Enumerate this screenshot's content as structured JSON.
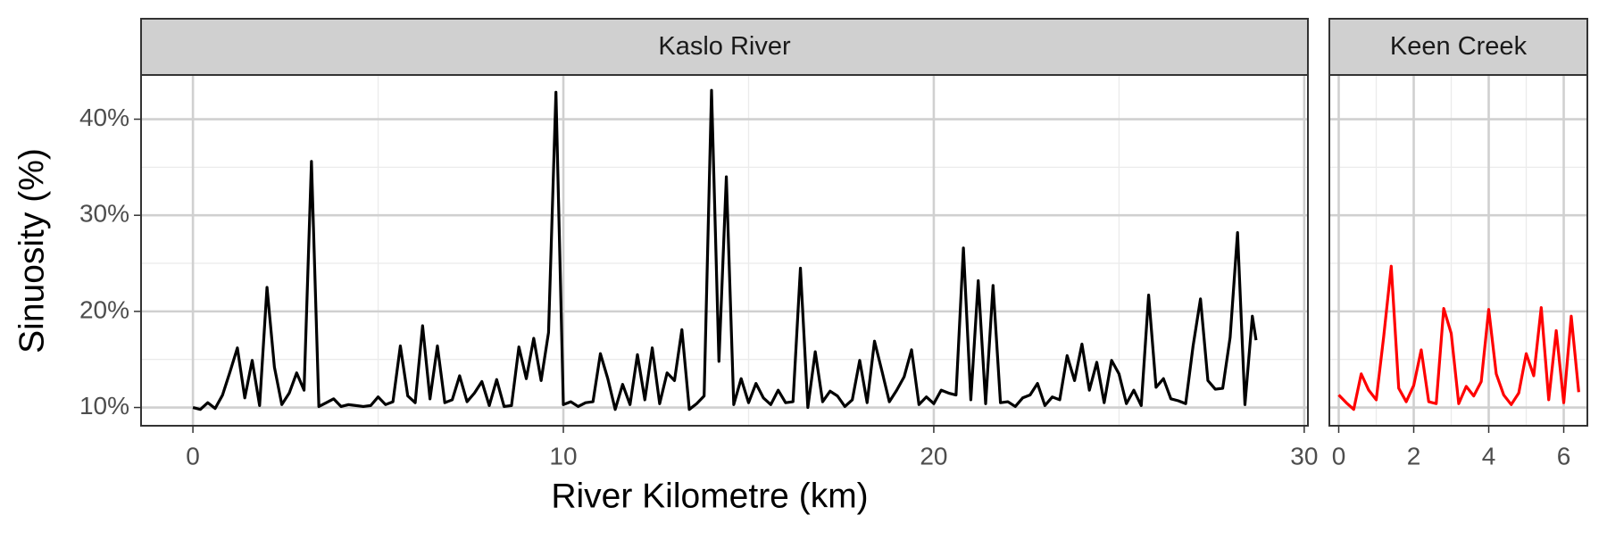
{
  "chart_data": {
    "type": "line",
    "x_label": "River Kilometre (km)",
    "y_label": "Sinuosity (%)",
    "ylim": [
      8.1,
      44.6
    ],
    "yticks": [
      {
        "value": 10,
        "label": "10%"
      },
      {
        "value": 20,
        "label": "20%"
      },
      {
        "value": 30,
        "label": "30%"
      },
      {
        "value": 40,
        "label": "40%"
      }
    ],
    "minor_yticks": [
      15,
      25,
      35
    ],
    "grid": true,
    "panels": [
      {
        "title": "Kaslo River",
        "color": "#000000",
        "xlim": [
          -1.4,
          30.1
        ],
        "xticks": [
          0,
          10,
          20,
          30
        ],
        "minor_xticks": [
          5,
          15,
          25
        ],
        "x": [
          0,
          0.2,
          0.4,
          0.6,
          0.8,
          1,
          1.2,
          1.4,
          1.6,
          1.8,
          2,
          2.2,
          2.4,
          2.6,
          2.8,
          3,
          3.2,
          3.4,
          3.6,
          3.8,
          4,
          4.2,
          4.4,
          4.6,
          4.8,
          5,
          5.2,
          5.4,
          5.6,
          5.8,
          6,
          6.2,
          6.4,
          6.6,
          6.8,
          7,
          7.2,
          7.4,
          7.6,
          7.8,
          8,
          8.2,
          8.4,
          8.6,
          8.8,
          9,
          9.2,
          9.4,
          9.6,
          9.8,
          10,
          10.2,
          10.4,
          10.6,
          10.8,
          11,
          11.2,
          11.4,
          11.6,
          11.8,
          12,
          12.2,
          12.4,
          12.6,
          12.8,
          13,
          13.2,
          13.4,
          13.6,
          13.8,
          14,
          14.2,
          14.4,
          14.6,
          14.8,
          15,
          15.2,
          15.4,
          15.6,
          15.8,
          16,
          16.2,
          16.4,
          16.6,
          16.8,
          17,
          17.2,
          17.4,
          17.6,
          17.8,
          18,
          18.2,
          18.4,
          18.6,
          18.8,
          19,
          19.2,
          19.4,
          19.6,
          19.8,
          20,
          20.2,
          20.4,
          20.6,
          20.8,
          21,
          21.2,
          21.4,
          21.6,
          21.8,
          22,
          22.2,
          22.4,
          22.6,
          22.8,
          23,
          23.2,
          23.4,
          23.6,
          23.8,
          24,
          24.2,
          24.4,
          24.6,
          24.8,
          25,
          25.2,
          25.4,
          25.6,
          25.8,
          26,
          26.2,
          26.4,
          26.6,
          26.8,
          27,
          27.2,
          27.4,
          27.6,
          27.8,
          28,
          28.2,
          28.4,
          28.6,
          28.7
        ],
        "values": [
          10,
          9.8,
          10.5,
          9.9,
          11.3,
          13.7,
          16.2,
          11,
          14.9,
          10.2,
          22.5,
          14.2,
          10.3,
          11.5,
          13.6,
          11.8,
          35.6,
          10.1,
          10.5,
          10.9,
          10.1,
          10.3,
          10.2,
          10.1,
          10.2,
          11.1,
          10.3,
          10.6,
          16.4,
          11.2,
          10.5,
          18.5,
          10.9,
          16.4,
          10.5,
          10.8,
          13.3,
          10.6,
          11.5,
          12.7,
          10.2,
          12.9,
          10.1,
          10.2,
          16.3,
          13,
          17.2,
          12.8,
          17.8,
          42.8,
          10.3,
          10.6,
          10.1,
          10.5,
          10.6,
          15.6,
          13,
          9.8,
          12.4,
          10.3,
          15.5,
          10.8,
          16.2,
          10.4,
          13.6,
          12.8,
          18.1,
          9.8,
          10.4,
          11.2,
          43,
          14.8,
          34,
          10.3,
          13,
          10.5,
          12.5,
          11,
          10.3,
          11.8,
          10.5,
          10.6,
          24.5,
          10,
          15.8,
          10.6,
          11.7,
          11.2,
          10.1,
          10.8,
          14.9,
          10.5,
          16.9,
          13.8,
          10.6,
          11.8,
          13.2,
          16,
          10.3,
          11.1,
          10.4,
          11.8,
          11.5,
          11.3,
          26.6,
          10.8,
          23.2,
          10.4,
          22.7,
          10.5,
          10.6,
          10.1,
          11,
          11.3,
          12.5,
          10.2,
          11.1,
          10.8,
          15.4,
          12.8,
          16.6,
          11.8,
          14.7,
          10.5,
          14.9,
          13.5,
          10.4,
          11.8,
          10.2,
          21.7,
          12.1,
          13,
          10.9,
          10.7,
          10.4,
          16.4,
          21.3,
          12.8,
          11.9,
          12,
          17.3,
          28.2,
          10.3,
          19.5,
          17
        ]
      },
      {
        "title": "Keen Creek",
        "color": "#ff0000",
        "xlim": [
          -0.25,
          6.63
        ],
        "xticks": [
          0,
          2,
          4,
          6
        ],
        "minor_xticks": [
          1,
          3,
          5
        ],
        "x": [
          0,
          0.2,
          0.4,
          0.6,
          0.8,
          1,
          1.2,
          1.4,
          1.6,
          1.8,
          2,
          2.2,
          2.4,
          2.6,
          2.8,
          3,
          3.2,
          3.4,
          3.6,
          3.8,
          4,
          4.2,
          4.4,
          4.6,
          4.8,
          5,
          5.2,
          5.4,
          5.6,
          5.8,
          6,
          6.2,
          6.4
        ],
        "values": [
          11.3,
          10.5,
          9.8,
          13.5,
          11.8,
          10.8,
          17.4,
          24.7,
          12,
          10.6,
          12.3,
          16,
          10.6,
          10.4,
          20.3,
          17.7,
          10.4,
          12.2,
          11.2,
          12.7,
          20.2,
          13.5,
          11.3,
          10.3,
          11.5,
          15.6,
          13.3,
          20.4,
          10.8,
          18,
          10.5,
          19.5,
          11.6
        ]
      }
    ]
  }
}
